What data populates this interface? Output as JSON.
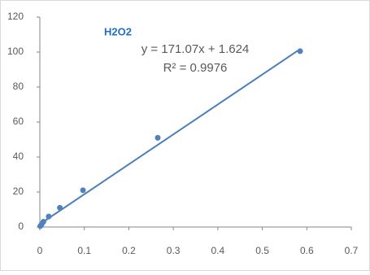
{
  "chart_data": {
    "type": "scatter",
    "title": "H2O2",
    "x": [
      0.001,
      0.004,
      0.008,
      0.02,
      0.045,
      0.097,
      0.265,
      0.585
    ],
    "values": [
      0.5,
      1.5,
      3,
      6,
      11,
      21,
      51,
      100.5
    ],
    "color": "#4f81bd",
    "xlim": [
      0,
      0.7
    ],
    "xticks": [
      0,
      0.1,
      0.2,
      0.3,
      0.4,
      0.5,
      0.6,
      0.7
    ],
    "ylim": [
      0,
      120
    ],
    "yticks": [
      0,
      20,
      40,
      60,
      80,
      100,
      120
    ],
    "grid": false,
    "trendline": {
      "equation": "y = 171.07x + 1.624",
      "r_squared": "R² = 0.9976",
      "slope": 171.07,
      "intercept": 1.624,
      "color": "#4a7ebb"
    }
  }
}
